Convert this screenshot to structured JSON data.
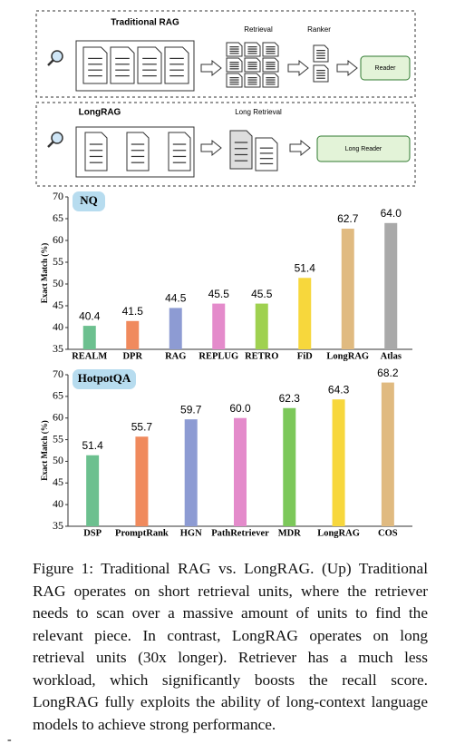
{
  "diagram": {
    "traditional_title": "Traditional RAG",
    "retrieval_label": "Retrieval",
    "ranker_label": "Ranker",
    "reader_label": "Reader",
    "long_title": "LongRAG",
    "long_retrieval_label": "Long Retrieval",
    "long_reader_label": "Long Reader"
  },
  "chart_data": [
    {
      "type": "bar",
      "title": "NQ",
      "y_label": "Exact Match (%)",
      "categories": [
        "REALM",
        "DPR",
        "RAG",
        "REPLUG",
        "RETRO",
        "FiD",
        "LongRAG",
        "Atlas"
      ],
      "values": [
        40.4,
        41.5,
        44.5,
        45.5,
        45.5,
        51.4,
        62.7,
        64.0
      ],
      "value_labels": [
        "40.4",
        "41.5",
        "44.5",
        "45.5",
        "45.5",
        "51.4",
        "62.7",
        "64.0"
      ],
      "colors": [
        "#6cc08f",
        "#f08a5d",
        "#8d9bd3",
        "#e48bcb",
        "#9fd150",
        "#f7d73c",
        "#e0ba80",
        "#a9a9a9"
      ],
      "ylim": [
        35,
        70
      ],
      "yticks": [
        35,
        40,
        45,
        50,
        55,
        60,
        65,
        70
      ]
    },
    {
      "type": "bar",
      "title": "HotpotQA",
      "y_label": "Exact Match (%)",
      "categories": [
        "DSP",
        "PromptRank",
        "HGN",
        "PathRetriever",
        "MDR",
        "LongRAG",
        "COS"
      ],
      "values": [
        51.4,
        55.7,
        59.7,
        60.0,
        62.3,
        64.3,
        68.2
      ],
      "value_labels": [
        "51.4",
        "55.7",
        "59.7",
        "60.0",
        "62.3",
        "64.3",
        "68.2"
      ],
      "colors": [
        "#6cc08f",
        "#f08a5d",
        "#8d9bd3",
        "#e48bcb",
        "#7cc85a",
        "#f7d73c",
        "#e0ba80"
      ],
      "ylim": [
        35,
        70
      ],
      "yticks": [
        35,
        40,
        45,
        50,
        55,
        60,
        65,
        70
      ]
    }
  ],
  "caption": "Figure 1: Traditional RAG vs. LongRAG. (Up) Traditional RAG operates on short retrieval units, where the retriever needs to scan over a massive amount of units to find the relevant piece. In contrast, LongRAG operates on long retrieval units (30x longer). Retriever has a much less workload, which significantly boosts the recall score. LongRAG fully exploits the ability of long-context language models to achieve strong performance.",
  "margin_mark": "-"
}
